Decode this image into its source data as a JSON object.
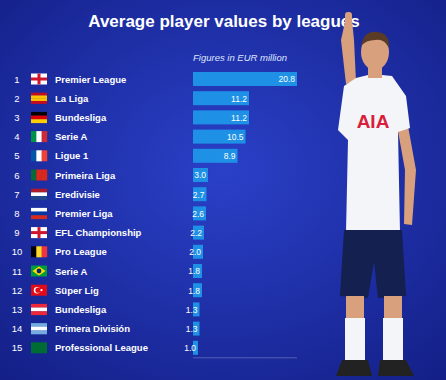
{
  "chart_data": {
    "type": "bar",
    "title": "Average player values by leagues",
    "subtitle": "Figures in EUR million",
    "orientation": "horizontal",
    "ranks": [
      1,
      2,
      3,
      4,
      5,
      6,
      7,
      8,
      9,
      10,
      11,
      12,
      13,
      14,
      15
    ],
    "categories": [
      "Premier League",
      "La Liga",
      "Bundesliga",
      "Serie A",
      "Ligue 1",
      "Primeira Liga",
      "Eredivisie",
      "Premier Liga",
      "EFL Championship",
      "Pro League",
      "Serie A",
      "Süper Lig",
      "Bundesliga",
      "Primera División",
      "Professional League"
    ],
    "values": [
      20.8,
      11.2,
      11.2,
      10.5,
      8.9,
      3.0,
      2.7,
      2.6,
      2.2,
      2.0,
      1.8,
      1.8,
      1.3,
      1.3,
      1.0
    ],
    "value_labels": [
      "20.8",
      "11.2",
      "11.2",
      "10.5",
      "8.9",
      "3.0",
      "2.7",
      "2.6",
      "2.2",
      "2.0",
      "1.8",
      "1.8",
      "1.3",
      "1.3",
      "1.0"
    ],
    "data_labels": true,
    "color": "#1e90e6",
    "xlim": [
      0,
      20.8
    ],
    "tick_labels": false,
    "grid": false,
    "annotation": "AIA"
  }
}
